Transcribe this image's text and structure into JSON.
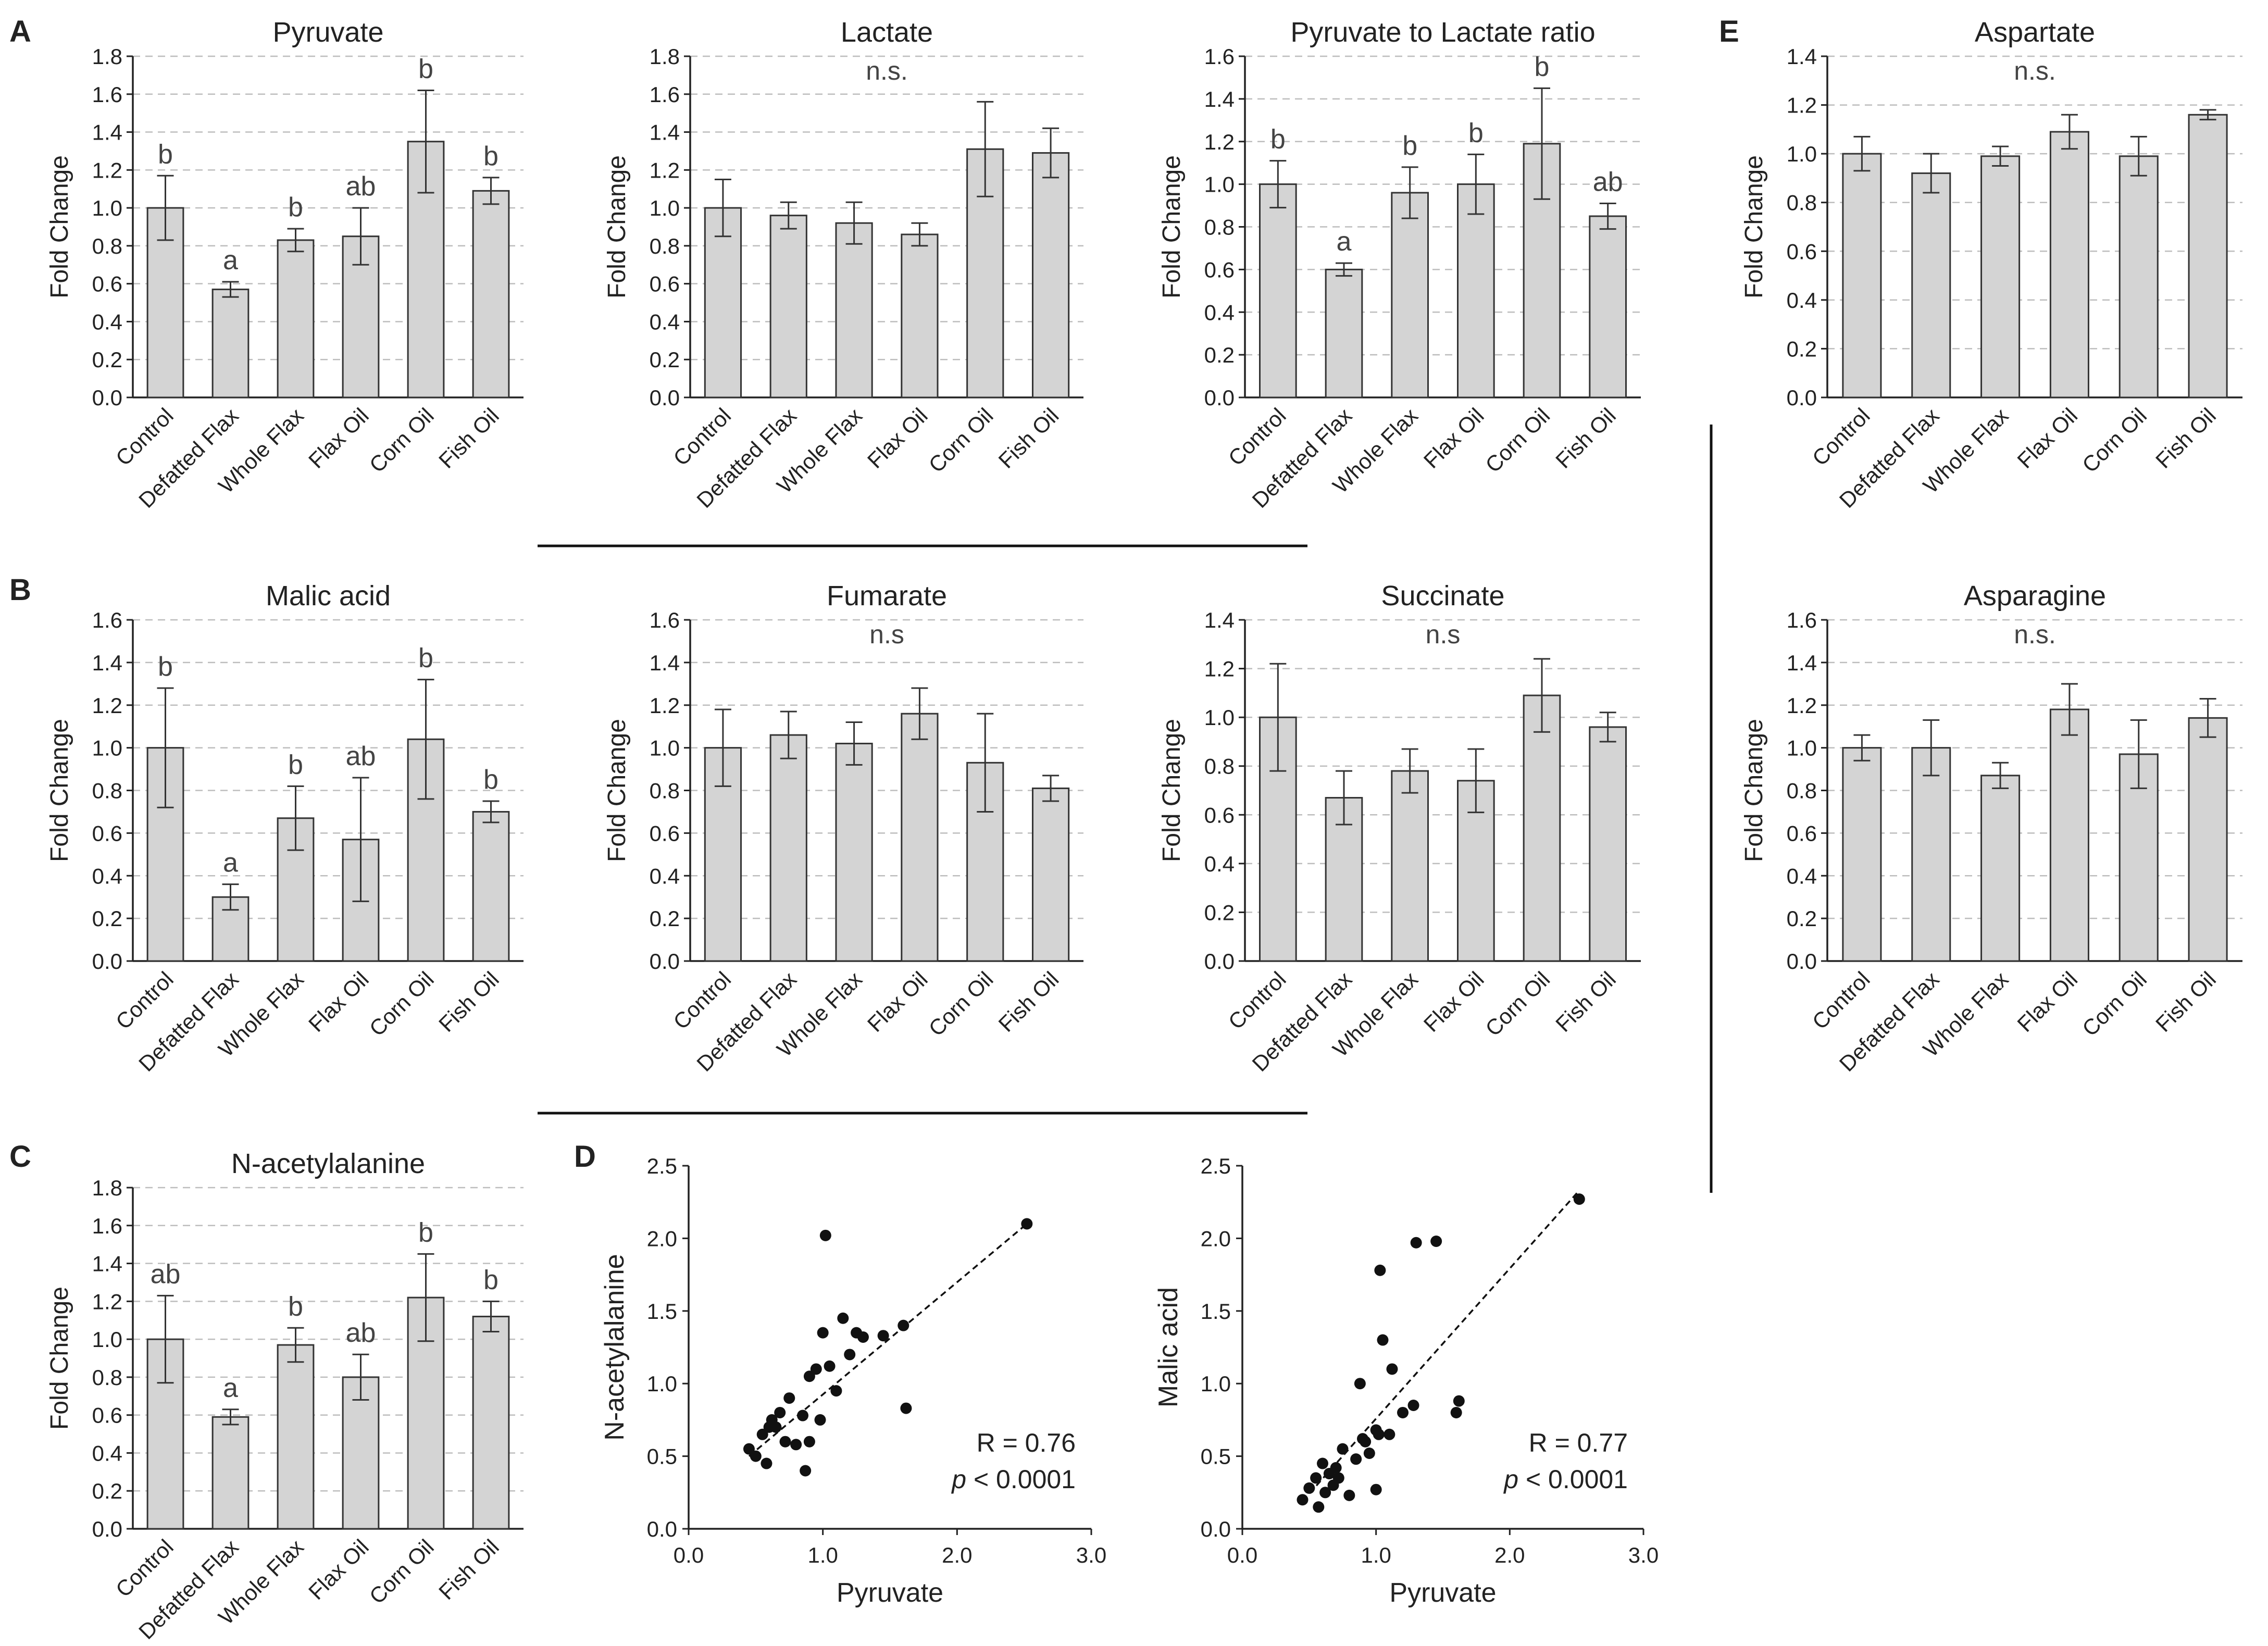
{
  "panel_labels": {
    "A": "A",
    "B": "B",
    "C": "C",
    "D": "D",
    "E": "E"
  },
  "colors": {
    "bar_fill": "#d4d4d4",
    "bar_stroke": "#333333",
    "axis": "#222222",
    "grid": "#bdbdbd",
    "text": "#222222",
    "sig_text": "#444444"
  },
  "chart_data": [
    {
      "id": "pyruvate",
      "type": "bar",
      "title": "Pyruvate",
      "ylabel": "Fold Change",
      "ylim": [
        0,
        1.8
      ],
      "yticks": [
        0,
        0.2,
        0.4,
        0.6,
        0.8,
        1.0,
        1.2,
        1.4,
        1.6,
        1.8
      ],
      "categories": [
        "Control",
        "Defatted Flax",
        "Whole Flax",
        "Flax Oil",
        "Corn Oil",
        "Fish Oil"
      ],
      "values": [
        1.0,
        0.57,
        0.83,
        0.85,
        1.35,
        1.09
      ],
      "errors": [
        0.17,
        0.04,
        0.06,
        0.15,
        0.27,
        0.07
      ],
      "sig_labels": [
        "b",
        "a",
        "b",
        "ab",
        "b",
        "b"
      ],
      "note": ""
    },
    {
      "id": "lactate",
      "type": "bar",
      "title": "Lactate",
      "ylabel": "Fold Change",
      "ylim": [
        0,
        1.8
      ],
      "yticks": [
        0,
        0.2,
        0.4,
        0.6,
        0.8,
        1.0,
        1.2,
        1.4,
        1.6,
        1.8
      ],
      "categories": [
        "Control",
        "Defatted Flax",
        "Whole Flax",
        "Flax Oil",
        "Corn Oil",
        "Fish Oil"
      ],
      "values": [
        1.0,
        0.96,
        0.92,
        0.86,
        1.31,
        1.29
      ],
      "errors": [
        0.15,
        0.07,
        0.11,
        0.06,
        0.25,
        0.13
      ],
      "sig_labels": [],
      "note": "n.s."
    },
    {
      "id": "pyr_lac_ratio",
      "type": "bar",
      "title": "Pyruvate to Lactate ratio",
      "ylabel": "Fold Change",
      "ylim": [
        0,
        1.6
      ],
      "yticks": [
        0,
        0.2,
        0.4,
        0.6,
        0.8,
        1.0,
        1.2,
        1.4,
        1.6
      ],
      "categories": [
        "Control",
        "Defatted Flax",
        "Whole Flax",
        "Flax Oil",
        "Corn Oil",
        "Fish Oil"
      ],
      "values": [
        1.0,
        0.6,
        0.96,
        1.0,
        1.19,
        0.85
      ],
      "errors": [
        0.11,
        0.03,
        0.12,
        0.14,
        0.26,
        0.06
      ],
      "sig_labels": [
        "b",
        "a",
        "b",
        "b",
        "b",
        "ab"
      ],
      "note": ""
    },
    {
      "id": "aspartate",
      "type": "bar",
      "title": "Aspartate",
      "ylabel": "Fold Change",
      "ylim": [
        0,
        1.4
      ],
      "yticks": [
        0,
        0.2,
        0.4,
        0.6,
        0.8,
        1.0,
        1.2,
        1.4
      ],
      "categories": [
        "Control",
        "Defatted Flax",
        "Whole Flax",
        "Flax Oil",
        "Corn Oil",
        "Fish Oil"
      ],
      "values": [
        1.0,
        0.92,
        0.99,
        1.09,
        0.99,
        1.16
      ],
      "errors": [
        0.07,
        0.08,
        0.04,
        0.07,
        0.08,
        0.02
      ],
      "sig_labels": [],
      "note": "n.s."
    },
    {
      "id": "malic_acid",
      "type": "bar",
      "title": "Malic acid",
      "ylabel": "Fold Change",
      "ylim": [
        0,
        1.6
      ],
      "yticks": [
        0,
        0.2,
        0.4,
        0.6,
        0.8,
        1.0,
        1.2,
        1.4,
        1.6
      ],
      "categories": [
        "Control",
        "Defatted Flax",
        "Whole Flax",
        "Flax Oil",
        "Corn Oil",
        "Fish Oil"
      ],
      "values": [
        1.0,
        0.3,
        0.67,
        0.57,
        1.04,
        0.7
      ],
      "errors": [
        0.28,
        0.06,
        0.15,
        0.29,
        0.28,
        0.05
      ],
      "sig_labels": [
        "b",
        "a",
        "b",
        "ab",
        "b",
        "b"
      ],
      "note": ""
    },
    {
      "id": "fumarate",
      "type": "bar",
      "title": "Fumarate",
      "ylabel": "Fold Change",
      "ylim": [
        0,
        1.6
      ],
      "yticks": [
        0,
        0.2,
        0.4,
        0.6,
        0.8,
        1.0,
        1.2,
        1.4,
        1.6
      ],
      "categories": [
        "Control",
        "Defatted Flax",
        "Whole Flax",
        "Flax Oil",
        "Corn Oil",
        "Fish Oil"
      ],
      "values": [
        1.0,
        1.06,
        1.02,
        1.16,
        0.93,
        0.81
      ],
      "errors": [
        0.18,
        0.11,
        0.1,
        0.12,
        0.23,
        0.06
      ],
      "sig_labels": [],
      "note": "n.s"
    },
    {
      "id": "succinate",
      "type": "bar",
      "title": "Succinate",
      "ylabel": "Fold Change",
      "ylim": [
        0,
        1.4
      ],
      "yticks": [
        0,
        0.2,
        0.4,
        0.6,
        0.8,
        1.0,
        1.2,
        1.4
      ],
      "categories": [
        "Control",
        "Defatted Flax",
        "Whole Flax",
        "Flax Oil",
        "Corn Oil",
        "Fish Oil"
      ],
      "values": [
        1.0,
        0.67,
        0.78,
        0.74,
        1.09,
        0.96
      ],
      "errors": [
        0.22,
        0.11,
        0.09,
        0.13,
        0.15,
        0.06
      ],
      "sig_labels": [],
      "note": "n.s"
    },
    {
      "id": "asparagine",
      "type": "bar",
      "title": "Asparagine",
      "ylabel": "Fold Change",
      "ylim": [
        0,
        1.6
      ],
      "yticks": [
        0,
        0.2,
        0.4,
        0.6,
        0.8,
        1.0,
        1.2,
        1.4,
        1.6
      ],
      "categories": [
        "Control",
        "Defatted Flax",
        "Whole Flax",
        "Flax Oil",
        "Corn Oil",
        "Fish Oil"
      ],
      "values": [
        1.0,
        1.0,
        0.87,
        1.18,
        0.97,
        1.14
      ],
      "errors": [
        0.06,
        0.13,
        0.06,
        0.12,
        0.16,
        0.09
      ],
      "sig_labels": [],
      "note": "n.s."
    },
    {
      "id": "n_acetylalanine",
      "type": "bar",
      "title": "N-acetylalanine",
      "ylabel": "Fold Change",
      "ylim": [
        0,
        1.8
      ],
      "yticks": [
        0,
        0.2,
        0.4,
        0.6,
        0.8,
        1.0,
        1.2,
        1.4,
        1.6,
        1.8
      ],
      "categories": [
        "Control",
        "Defatted Flax",
        "Whole Flax",
        "Flax Oil",
        "Corn Oil",
        "Fish Oil"
      ],
      "values": [
        1.0,
        0.59,
        0.97,
        0.8,
        1.22,
        1.12
      ],
      "errors": [
        0.23,
        0.04,
        0.09,
        0.12,
        0.23,
        0.08
      ],
      "sig_labels": [
        "ab",
        "a",
        "b",
        "ab",
        "b",
        "b"
      ],
      "note": ""
    },
    {
      "id": "scatter_nacetyl",
      "type": "scatter",
      "xlabel": "Pyruvate",
      "ylabel": "N-acetylalanine",
      "xlim": [
        0,
        3.0
      ],
      "ylim": [
        0,
        2.5
      ],
      "xticks": [
        0.0,
        1.0,
        2.0,
        3.0
      ],
      "yticks": [
        0.0,
        0.5,
        1.0,
        1.5,
        2.0,
        2.5
      ],
      "x": [
        0.45,
        0.5,
        0.55,
        0.58,
        0.6,
        0.62,
        0.65,
        0.68,
        0.72,
        0.75,
        0.8,
        0.85,
        0.87,
        0.9,
        0.9,
        0.95,
        0.98,
        1.0,
        1.02,
        1.05,
        1.1,
        1.15,
        1.2,
        1.25,
        1.3,
        1.45,
        1.6,
        1.62,
        2.52
      ],
      "y": [
        0.55,
        0.5,
        0.65,
        0.45,
        0.7,
        0.75,
        0.7,
        0.8,
        0.6,
        0.9,
        0.58,
        0.78,
        0.4,
        1.05,
        0.6,
        1.1,
        0.75,
        1.35,
        2.02,
        1.12,
        0.95,
        1.45,
        1.2,
        1.35,
        1.32,
        1.33,
        1.4,
        0.83,
        2.1
      ],
      "fit": {
        "x1": 0.45,
        "y1": 0.5,
        "x2": 2.52,
        "y2": 2.1
      },
      "r_text": "R = 0.76",
      "p_label": "p",
      "p_value": "< 0.0001"
    },
    {
      "id": "scatter_malic",
      "type": "scatter",
      "xlabel": "Pyruvate",
      "ylabel": "Malic acid",
      "xlim": [
        0,
        3.0
      ],
      "ylim": [
        0,
        2.5
      ],
      "xticks": [
        0.0,
        1.0,
        2.0,
        3.0
      ],
      "yticks": [
        0.0,
        0.5,
        1.0,
        1.5,
        2.0,
        2.5
      ],
      "x": [
        0.45,
        0.5,
        0.55,
        0.57,
        0.6,
        0.62,
        0.65,
        0.68,
        0.7,
        0.72,
        0.75,
        0.8,
        0.85,
        0.88,
        0.9,
        0.92,
        0.95,
        1.0,
        1.0,
        1.02,
        1.03,
        1.05,
        1.1,
        1.12,
        1.2,
        1.28,
        1.3,
        1.45,
        1.6,
        1.62,
        2.52
      ],
      "y": [
        0.2,
        0.28,
        0.35,
        0.15,
        0.45,
        0.25,
        0.38,
        0.3,
        0.42,
        0.35,
        0.55,
        0.23,
        0.48,
        1.0,
        0.62,
        0.6,
        0.52,
        0.68,
        0.27,
        0.65,
        1.78,
        1.3,
        0.65,
        1.1,
        0.8,
        0.85,
        1.97,
        1.98,
        0.8,
        0.88,
        2.27
      ],
      "fit": {
        "x1": 0.45,
        "y1": 0.19,
        "x2": 2.52,
        "y2": 2.33
      },
      "r_text": "R = 0.77",
      "p_label": "p",
      "p_value": "< 0.0001"
    }
  ]
}
